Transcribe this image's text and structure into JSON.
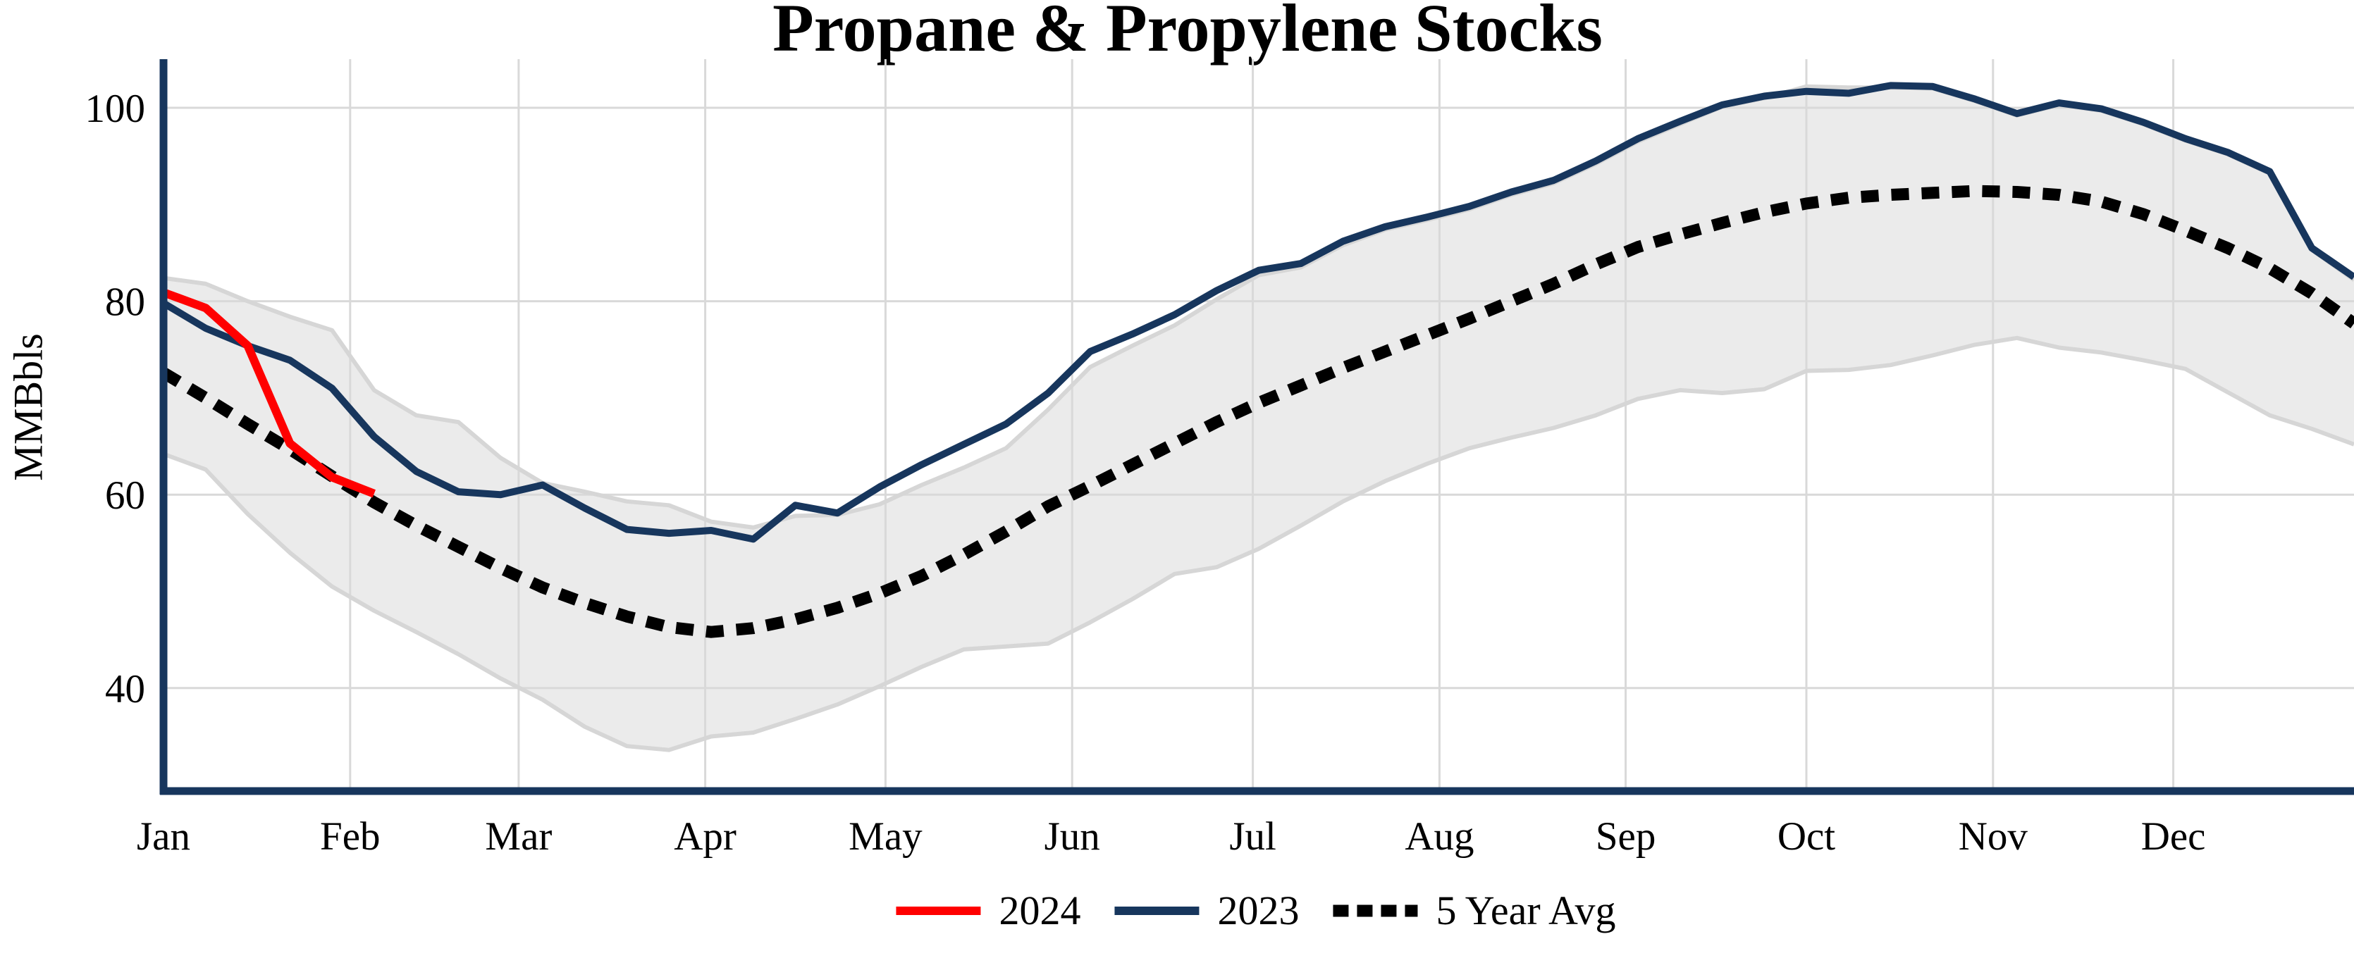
{
  "title": "Propane & Propylene Stocks",
  "y_axis": {
    "label": "MMBbls",
    "ticks": [
      100,
      80,
      60,
      40
    ]
  },
  "x_axis": {
    "months": [
      "Jan",
      "Feb",
      "Mar",
      "Apr",
      "May",
      "Jun",
      "Jul",
      "Aug",
      "Sep",
      "Oct",
      "Nov",
      "Dec"
    ]
  },
  "legend": {
    "items": [
      {
        "label": "2024",
        "color": "#ff0000",
        "style": "solid"
      },
      {
        "label": "2023",
        "color": "#17365d",
        "style": "solid"
      },
      {
        "label": "5 Year Avg",
        "color": "#000000",
        "style": "dotted"
      }
    ]
  },
  "colors": {
    "background": "#ffffff",
    "axis": "#17365d",
    "grid": "#d9d9d9",
    "band_fill": "#ebebeb",
    "band_edge": "#d6d6d6",
    "series_2024": "#ff0000",
    "series_2023": "#17365d",
    "series_avg": "#000000",
    "text": "#000000"
  },
  "chart_data": {
    "type": "line",
    "title": "Propane & Propylene Stocks",
    "xlabel": "",
    "ylabel": "MMBbls",
    "ylim": [
      29.5,
      105
    ],
    "yticks": [
      40,
      60,
      80,
      100
    ],
    "x_unit": "weekly values, week index 0-52 spanning Jan 1 to Dec 31",
    "xtick_labels": [
      "Jan",
      "Feb",
      "Mar",
      "Apr",
      "May",
      "Jun",
      "Jul",
      "Aug",
      "Sep",
      "Oct",
      "Nov",
      "Dec"
    ],
    "month_start_week": [
      0,
      4.43,
      8.43,
      12.86,
      17.14,
      21.57,
      25.86,
      30.29,
      34.71,
      39.0,
      43.43,
      47.71
    ],
    "grid": true,
    "legend_position": "bottom-center",
    "band": {
      "name": "5 Year Range",
      "upper": [
        82.4,
        81.8,
        80.0,
        78.4,
        77.0,
        70.8,
        68.2,
        67.5,
        63.8,
        61.2,
        60.3,
        59.3,
        58.9,
        57.2,
        56.6,
        57.8,
        57.9,
        59.0,
        61.0,
        62.8,
        64.8,
        68.8,
        73.2,
        75.4,
        77.5,
        80.2,
        82.7,
        83.5,
        85.8,
        87.4,
        88.4,
        89.5,
        91.0,
        92.2,
        94.2,
        96.5,
        98.3,
        100.1,
        101.0,
        102.2,
        102.1,
        102.1,
        102.0,
        100.7,
        99.2,
        100.3,
        99.7,
        98.3,
        96.6,
        95.2,
        93.2,
        85.3,
        82.2
      ],
      "lower": [
        64.2,
        62.6,
        58.0,
        54.0,
        50.5,
        48.0,
        45.8,
        43.5,
        41.0,
        38.8,
        36.0,
        34.0,
        33.6,
        35.0,
        35.4,
        36.8,
        38.3,
        40.2,
        42.2,
        44.0,
        44.3,
        44.6,
        46.8,
        49.2,
        51.8,
        52.5,
        54.4,
        56.8,
        59.3,
        61.4,
        63.2,
        64.8,
        65.9,
        66.9,
        68.2,
        69.9,
        70.8,
        70.5,
        70.9,
        72.8,
        72.9,
        73.4,
        74.4,
        75.5,
        76.2,
        75.2,
        74.7,
        73.9,
        73.0,
        70.6,
        68.2,
        66.8,
        65.2
      ]
    },
    "series": [
      {
        "name": "5 Year Avg",
        "color": "#000000",
        "line": "dotted",
        "width": 17,
        "values": [
          72.6,
          70.0,
          67.3,
          64.7,
          61.9,
          59.2,
          56.8,
          54.6,
          52.4,
          50.4,
          48.8,
          47.4,
          46.3,
          45.8,
          46.2,
          47.1,
          48.3,
          49.8,
          51.6,
          53.8,
          56.2,
          58.8,
          60.9,
          63.1,
          65.3,
          67.5,
          69.5,
          71.3,
          73.1,
          74.8,
          76.5,
          78.2,
          80.0,
          81.8,
          83.8,
          85.6,
          86.9,
          88.1,
          89.2,
          90.1,
          90.7,
          91.0,
          91.2,
          91.4,
          91.3,
          91.0,
          90.3,
          89.0,
          87.3,
          85.5,
          83.4,
          80.8,
          77.7
        ]
      },
      {
        "name": "2023",
        "color": "#17365d",
        "line": "solid",
        "width": 10,
        "values": [
          79.8,
          77.2,
          75.4,
          73.9,
          71.0,
          66.0,
          62.4,
          60.3,
          60.0,
          61.0,
          58.6,
          56.4,
          56.0,
          56.3,
          55.4,
          58.9,
          58.1,
          60.8,
          63.1,
          65.2,
          67.3,
          70.5,
          74.8,
          76.6,
          78.6,
          81.1,
          83.2,
          83.9,
          86.2,
          87.7,
          88.7,
          89.8,
          91.3,
          92.5,
          94.5,
          96.8,
          98.6,
          100.3,
          101.2,
          101.7,
          101.5,
          102.3,
          102.2,
          100.9,
          99.4,
          100.5,
          99.9,
          98.5,
          96.8,
          95.4,
          93.4,
          85.5,
          82.5
        ]
      },
      {
        "name": "2024",
        "color": "#ff0000",
        "line": "solid",
        "width": 12,
        "values": [
          80.9,
          79.3,
          75.4,
          65.3,
          61.8,
          60.1
        ]
      }
    ]
  }
}
